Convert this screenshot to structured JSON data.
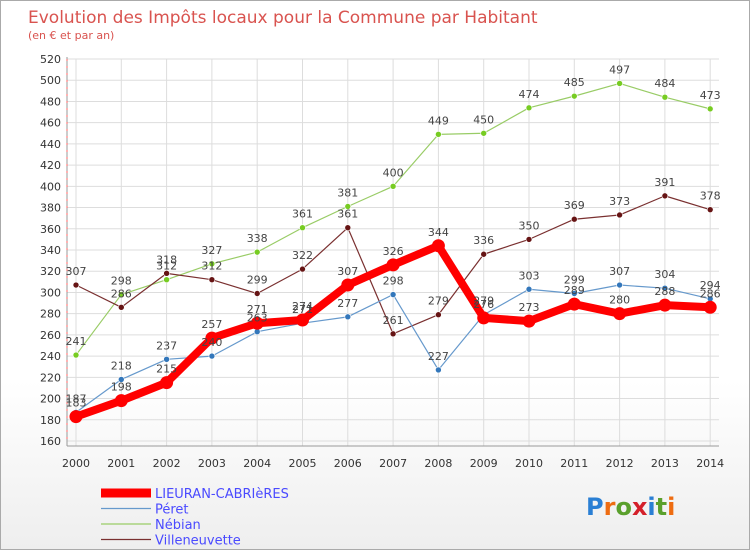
{
  "page": {
    "title": "Evolution des Impôts locaux pour la Commune par Habitant",
    "subtitle": "(en € et par an)",
    "logo_text": "Proxiti"
  },
  "chart_data": {
    "type": "line",
    "title": "Evolution des Impôts locaux pour la Commune par Habitant",
    "subtitle": "(en € et par an)",
    "xlabel": "",
    "ylabel": "",
    "ylim": [
      160,
      520
    ],
    "yticks": [
      160,
      180,
      200,
      220,
      240,
      260,
      280,
      300,
      320,
      340,
      360,
      380,
      400,
      420,
      440,
      460,
      480,
      500,
      520
    ],
    "grid": true,
    "legend_position": "bottom-left",
    "x": [
      "2000",
      "2001",
      "2002",
      "2003",
      "2004",
      "2005",
      "2006",
      "2007",
      "2008",
      "2009",
      "2010",
      "2011",
      "2012",
      "2013",
      "2014"
    ],
    "series": [
      {
        "name": "Nébian",
        "color": "#99cc66",
        "marker": "#77cc22",
        "width": 1.2,
        "values": [
          241,
          298,
          312,
          327,
          338,
          361,
          381,
          400,
          449,
          450,
          474,
          485,
          497,
          484,
          473
        ]
      },
      {
        "name": "Villeneuvette",
        "color": "#7a3030",
        "marker": "#661414",
        "width": 1.2,
        "values": [
          307,
          286,
          318,
          312,
          299,
          322,
          361,
          261,
          279,
          336,
          350,
          369,
          373,
          391,
          378
        ]
      },
      {
        "name": "Péret",
        "color": "#6699cc",
        "marker": "#3377bb",
        "width": 1.2,
        "values": [
          187,
          218,
          237,
          240,
          263,
          271,
          277,
          298,
          227,
          279,
          303,
          299,
          307,
          304,
          294
        ]
      },
      {
        "name": "LIEURAN-CABRIèRES",
        "color": "#ff0000",
        "marker": "#ff0000",
        "width": 8,
        "values": [
          183,
          198,
          215,
          257,
          271,
          274,
          307,
          326,
          344,
          276,
          273,
          289,
          280,
          288,
          286
        ]
      }
    ]
  }
}
